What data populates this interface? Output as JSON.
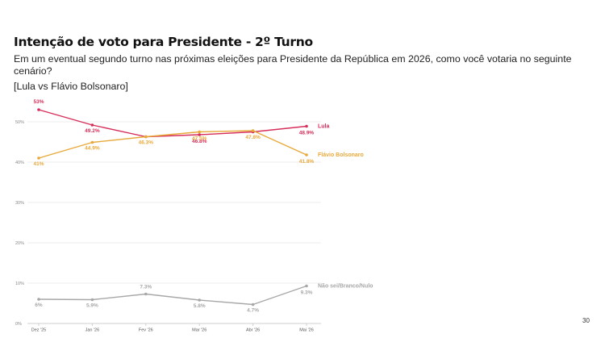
{
  "header": {
    "title": "Intenção de voto para Presidente - 2º Turno",
    "subtitle": "Em um eventual segundo turno nas próximas eleições para Presidente da República em 2026, como você votaria no seguinte cenário?",
    "scenario": "[Lula vs Flávio Bolsonaro]"
  },
  "page_number": "30",
  "chart_data": {
    "type": "line",
    "title": "Intenção de voto para Presidente - 2º Turno",
    "x": [
      "Dez '25",
      "Jan '26",
      "Fev '26",
      "Mar '26",
      "Abr '26",
      "Mai '26"
    ],
    "y_ticks": [
      "0%",
      "10%",
      "20%",
      "30%",
      "40%",
      "50%"
    ],
    "ylim": [
      0,
      55
    ],
    "grid": true,
    "legend": "end-of-line labels",
    "series": [
      {
        "name": "Lula",
        "color": "#d62e5a",
        "values": [
          53,
          49.2,
          46.3,
          46.8,
          47.5,
          48.9
        ],
        "labels": [
          "53%",
          "49.2%",
          "",
          "46.8%",
          "",
          "48.9%"
        ]
      },
      {
        "name": "Flávio Bolsonaro",
        "color": "#e8a93b",
        "values": [
          41,
          44.9,
          46.3,
          47.5,
          47.8,
          41.8
        ],
        "labels": [
          "41%",
          "44.9%",
          "46.3%",
          "47.5%",
          "47.8%",
          "41.8%"
        ]
      },
      {
        "name": "Não sei/Branco/Nulo",
        "color": "#a8a8a8",
        "values": [
          6,
          5.9,
          7.3,
          5.8,
          4.7,
          9.3
        ],
        "labels": [
          "6%",
          "5.9%",
          "7.3%",
          "5.8%",
          "4.7%",
          "9.3%"
        ]
      }
    ]
  }
}
